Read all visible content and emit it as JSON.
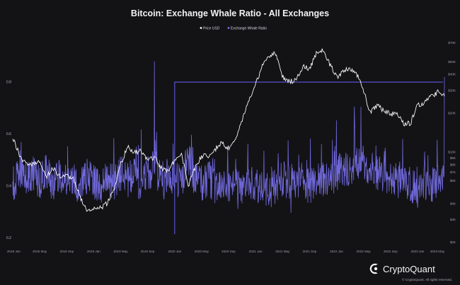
{
  "chart_data": {
    "type": "line",
    "title": "Bitcoin: Exchange Whale Ratio - All Exchanges",
    "legend": {
      "placement": "top-center",
      "entries": [
        "Price USD",
        "Exchange Whale Ratio"
      ]
    },
    "grid": false,
    "x_tick_labels": [
      "2018 Jan",
      "2018 May",
      "2018 Sep",
      "2019 Jan",
      "2019 May",
      "2019 Sep",
      "2020 Jan",
      "2020 May",
      "2020 Sep",
      "2021 Jan",
      "2021 May",
      "2021 Sep",
      "2022 Jan",
      "2022 May",
      "2022 Sep",
      "2023 Jan",
      "2023 May"
    ],
    "left_axis": {
      "ticks": [
        0.2,
        0.4,
        0.6,
        0.8
      ],
      "tick_labels": [
        "0.2",
        "0.4",
        "0.6",
        "0.8"
      ],
      "ylim": [
        0.16,
        0.98
      ]
    },
    "right_axis": {
      "scale": "log",
      "ticks": [
        2000,
        3000,
        4000,
        6000,
        7000,
        8000,
        9000,
        10000,
        20000,
        30000,
        40000,
        50000,
        70000
      ],
      "tick_labels": [
        "$2K",
        "$3K",
        "$4K",
        "$6K",
        "$7K",
        "$8K",
        "$9K",
        "$10K",
        "$20K",
        "$30K",
        "$40K",
        "$50K",
        "$70K"
      ],
      "ylim": [
        1800,
        80000
      ]
    },
    "series": [
      {
        "name": "Price USD",
        "color": "#ffffff",
        "axis": "right",
        "x": [
          "2018-01",
          "2018-02",
          "2018-03",
          "2018-04",
          "2018-05",
          "2018-06",
          "2018-07",
          "2018-08",
          "2018-09",
          "2018-10",
          "2018-11",
          "2018-12",
          "2019-01",
          "2019-02",
          "2019-03",
          "2019-04",
          "2019-05",
          "2019-06",
          "2019-07",
          "2019-08",
          "2019-09",
          "2019-10",
          "2019-11",
          "2019-12",
          "2020-01",
          "2020-02",
          "2020-03",
          "2020-04",
          "2020-05",
          "2020-06",
          "2020-07",
          "2020-08",
          "2020-09",
          "2020-10",
          "2020-11",
          "2020-12",
          "2021-01",
          "2021-02",
          "2021-03",
          "2021-04",
          "2021-05",
          "2021-06",
          "2021-07",
          "2021-08",
          "2021-09",
          "2021-10",
          "2021-11",
          "2021-12",
          "2022-01",
          "2022-02",
          "2022-03",
          "2022-04",
          "2022-05",
          "2022-06",
          "2022-07",
          "2022-08",
          "2022-09",
          "2022-10",
          "2022-11",
          "2022-12",
          "2023-01",
          "2023-02",
          "2023-03",
          "2023-04",
          "2023-05"
        ],
        "values": [
          13000,
          9500,
          8000,
          8000,
          8500,
          6500,
          7500,
          6500,
          6500,
          6300,
          4500,
          3500,
          3600,
          3700,
          4000,
          5200,
          8000,
          11000,
          10000,
          10200,
          8500,
          9200,
          7500,
          7200,
          8500,
          9800,
          5500,
          7500,
          9300,
          9300,
          10500,
          11700,
          10700,
          12500,
          17500,
          25000,
          33000,
          46000,
          55000,
          58000,
          38000,
          35000,
          36000,
          46000,
          44000,
          58000,
          62000,
          48000,
          38000,
          42000,
          45000,
          40000,
          30000,
          20000,
          23000,
          21000,
          19500,
          20000,
          16500,
          16800,
          23000,
          24000,
          27000,
          29000,
          28000
        ]
      },
      {
        "name": "Exchange Whale Ratio",
        "color": "#7b72f0",
        "axis": "left",
        "x": [
          "2018-01",
          "2018-02",
          "2018-03",
          "2018-04",
          "2018-05",
          "2018-06",
          "2018-07",
          "2018-08",
          "2018-09",
          "2018-10",
          "2018-11",
          "2018-12",
          "2019-01",
          "2019-02",
          "2019-03",
          "2019-04",
          "2019-05",
          "2019-06",
          "2019-07",
          "2019-08",
          "2019-09",
          "2019-10",
          "2019-11",
          "2019-12",
          "2020-01",
          "2020-02",
          "2020-03",
          "2020-04",
          "2020-05",
          "2020-06",
          "2020-07",
          "2020-08",
          "2020-09",
          "2020-10",
          "2020-11",
          "2020-12",
          "2021-01",
          "2021-02",
          "2021-03",
          "2021-04",
          "2021-05",
          "2021-06",
          "2021-07",
          "2021-08",
          "2021-09",
          "2021-10",
          "2021-11",
          "2021-12",
          "2022-01",
          "2022-02",
          "2022-03",
          "2022-04",
          "2022-05",
          "2022-06",
          "2022-07",
          "2022-08",
          "2022-09",
          "2022-10",
          "2022-11",
          "2022-12",
          "2023-01",
          "2023-02",
          "2023-03",
          "2023-04",
          "2023-05"
        ],
        "values": [
          0.4,
          0.46,
          0.42,
          0.45,
          0.42,
          0.46,
          0.4,
          0.44,
          0.41,
          0.43,
          0.39,
          0.44,
          0.42,
          0.4,
          0.43,
          0.41,
          0.45,
          0.42,
          0.46,
          0.4,
          0.44,
          0.48,
          0.42,
          0.45,
          0.43,
          0.42,
          0.5,
          0.44,
          0.41,
          0.43,
          0.4,
          0.42,
          0.39,
          0.41,
          0.4,
          0.42,
          0.41,
          0.39,
          0.38,
          0.4,
          0.43,
          0.41,
          0.4,
          0.42,
          0.4,
          0.41,
          0.43,
          0.42,
          0.45,
          0.47,
          0.46,
          0.48,
          0.49,
          0.47,
          0.45,
          0.44,
          0.43,
          0.42,
          0.44,
          0.4,
          0.39,
          0.41,
          0.4,
          0.41,
          0.42
        ],
        "annotated_peaks": [
          {
            "x": "2019-10",
            "value": 0.88
          },
          {
            "x": "2023-05",
            "value": 0.82
          }
        ]
      }
    ],
    "reference_line": {
      "axis": "left",
      "value": 0.8,
      "start_x": "2020-01",
      "color": "#5d5adf"
    }
  },
  "branding": {
    "logo_text": "CryptoQuant",
    "copyright": "© CryptoQuant. All rights reserved."
  },
  "colors": {
    "background": "#131316",
    "price": "#ffffff",
    "whale_ratio": "#7b72f0",
    "reference_line": "#5d5adf",
    "tick_text": "#9b9ba6"
  }
}
